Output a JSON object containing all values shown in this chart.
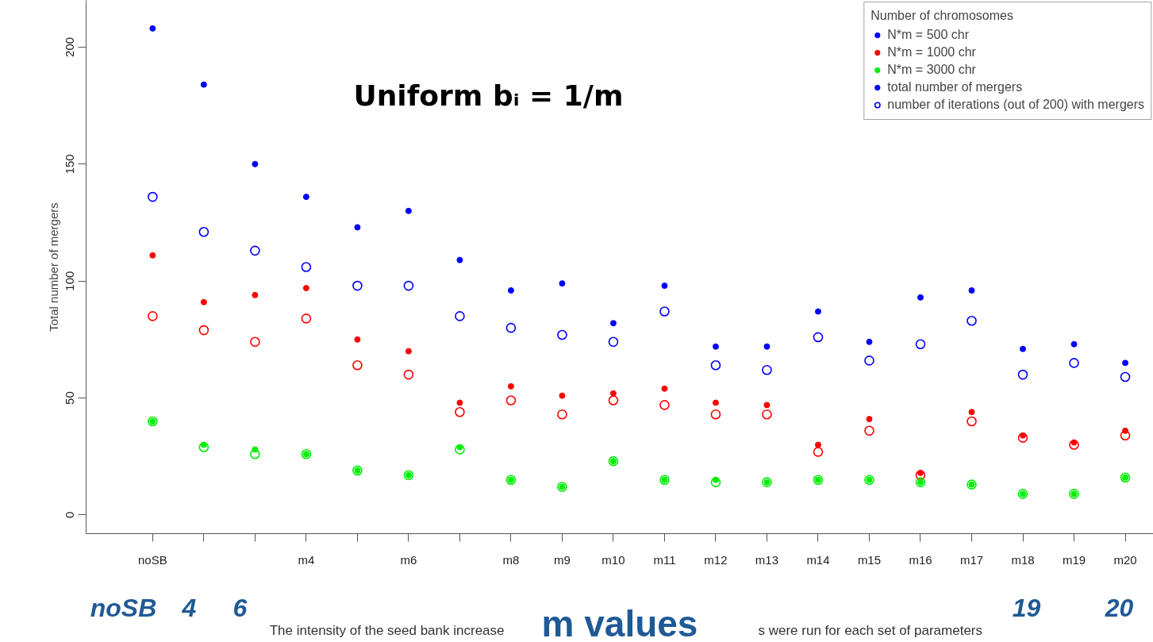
{
  "chart_data": {
    "type": "scatter",
    "title": "Uniform bᵢ = 1/m",
    "xlabel": "m values",
    "ylabel": "Total number of mergers",
    "legend_title": "Number of chromosomes",
    "legend": "top right",
    "grid": false,
    "categories": [
      "noSB",
      null,
      null,
      "m4",
      null,
      "m6",
      null,
      "m8",
      "m9",
      "m10",
      "m11",
      "m12",
      "m13",
      "m14",
      "m15",
      "m16",
      "m17",
      "m18",
      "m19",
      "m20"
    ],
    "ylim": [
      -8,
      220
    ],
    "yticks": [
      0,
      50,
      100,
      150,
      200
    ],
    "series": [
      {
        "name": "N*m = 500 chr",
        "color": "#0000ff",
        "marker": "circle",
        "values": [
          208,
          184,
          150,
          136,
          123,
          130,
          109,
          96,
          99,
          82,
          98,
          72,
          72,
          87,
          74,
          93,
          96,
          71,
          73,
          65
        ]
      },
      {
        "color": "#0000ff",
        "marker": "circle_open",
        "values": [
          136,
          121,
          113,
          106,
          98,
          98,
          85,
          80,
          77,
          74,
          87,
          64,
          62,
          76,
          66,
          73,
          83,
          60,
          65,
          59
        ]
      },
      {
        "name": "N*m = 1000 chr",
        "color": "#ff0000",
        "marker": "circle",
        "values": [
          111,
          91,
          94,
          97,
          75,
          70,
          48,
          55,
          51,
          52,
          54,
          48,
          47,
          30,
          41,
          18,
          44,
          34,
          31,
          36
        ]
      },
      {
        "color": "#ff0000",
        "marker": "circle_open",
        "values": [
          85,
          79,
          74,
          84,
          64,
          60,
          44,
          49,
          43,
          49,
          47,
          43,
          43,
          27,
          36,
          17,
          40,
          33,
          30,
          34
        ]
      },
      {
        "name": "N*m = 3000 chr",
        "color": "#00ee00",
        "marker": "circle",
        "values": [
          40,
          30,
          28,
          26,
          19,
          17,
          29,
          15,
          12,
          23,
          15,
          15,
          14,
          15,
          15,
          14,
          13,
          9,
          9,
          16
        ]
      },
      {
        "color": "#00ee00",
        "marker": "circle_open",
        "values": [
          40,
          29,
          26,
          26,
          19,
          17,
          28,
          15,
          12,
          23,
          15,
          14,
          14,
          15,
          15,
          14,
          13,
          9,
          9,
          16
        ]
      }
    ],
    "annotations": [
      "The intensity of the seed bank increase",
      "s were run for each set of parameters",
      "total number of mergers",
      "number of iterations (out of 200) with mergers",
      "noSB",
      "4",
      "6",
      "19",
      "20"
    ]
  }
}
